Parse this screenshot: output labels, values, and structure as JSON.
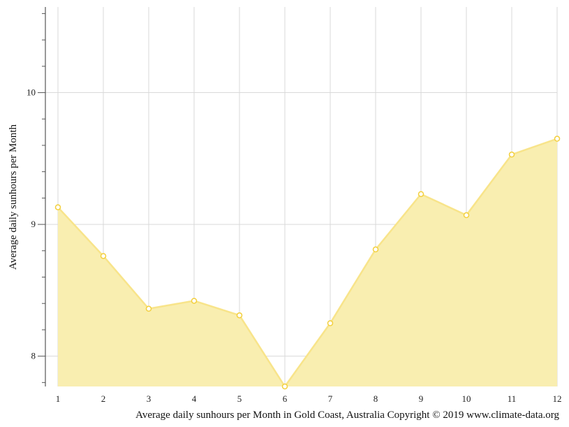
{
  "chart_data": {
    "type": "area",
    "title": "Average daily sunhours per Month in Gold Coast, Australia Copyright © 2019 www.climate-data.org",
    "xlabel": "",
    "ylabel": "Average daily sunhours per Month",
    "categories": [
      "1",
      "2",
      "3",
      "4",
      "5",
      "6",
      "7",
      "8",
      "9",
      "10",
      "11",
      "12"
    ],
    "values": [
      9.13,
      8.76,
      8.36,
      8.42,
      8.31,
      7.77,
      8.25,
      8.81,
      9.23,
      9.07,
      9.53,
      9.65
    ],
    "ylim": [
      7.77,
      10.65
    ],
    "yticks": [
      "8",
      "9",
      "10"
    ],
    "ytick_values": [
      8,
      9,
      10
    ],
    "minor_tick_step": 0.2,
    "grid": true,
    "colors": {
      "fill": "#f9eeb0",
      "line": "#f8e48a",
      "marker": "#f3cf3c",
      "grid": "#d9d9d9",
      "axis": "#555555"
    }
  }
}
